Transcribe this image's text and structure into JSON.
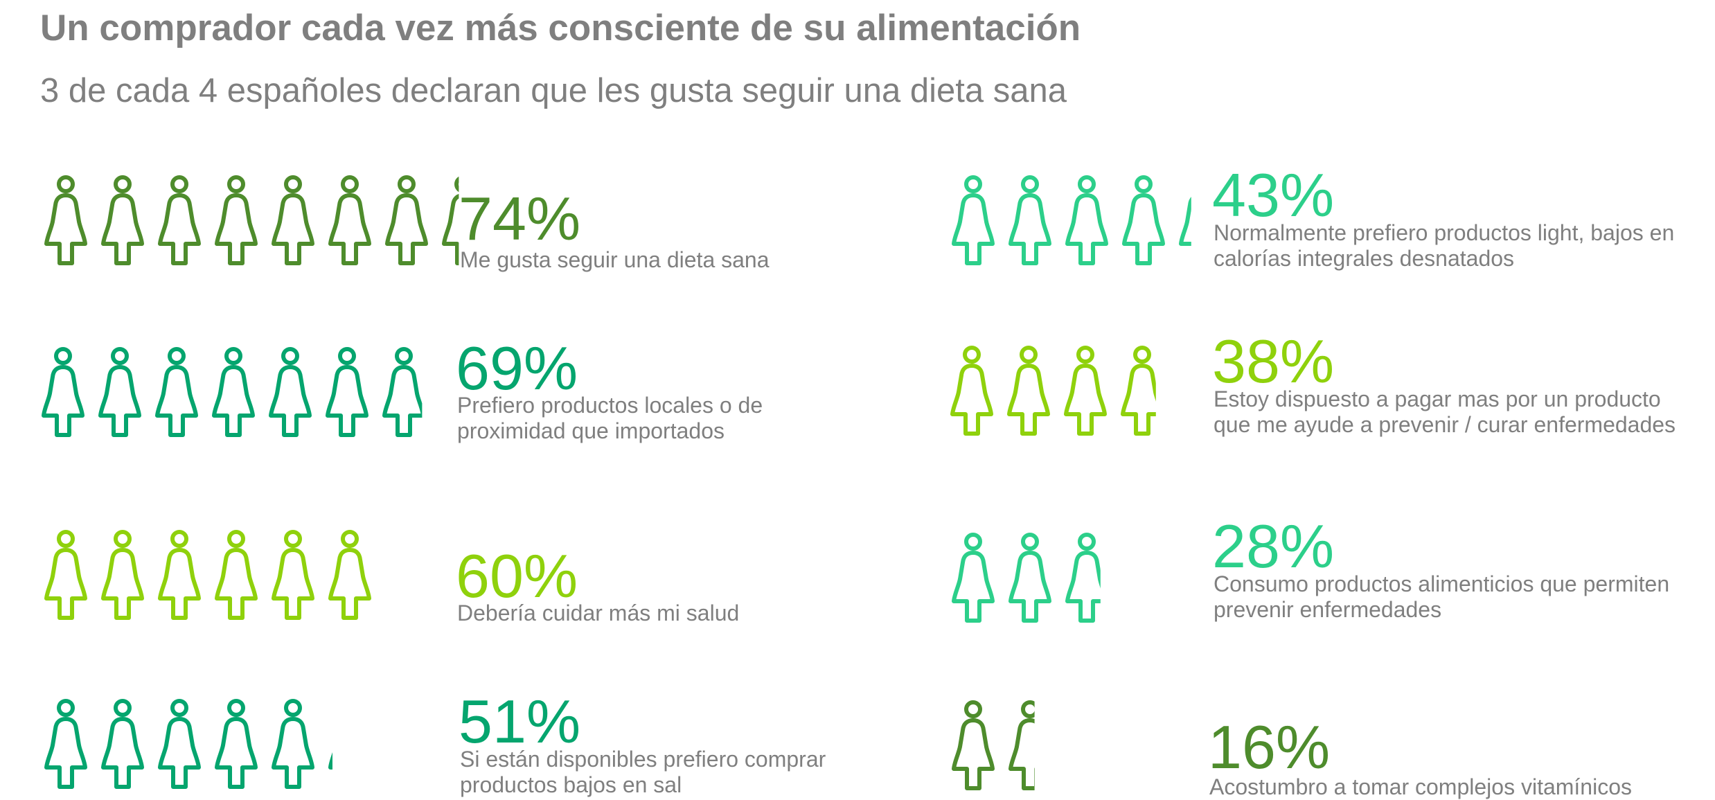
{
  "title": "Un comprador cada vez más consciente de su alimentación",
  "subtitle": "3 de cada 4 españoles declaran que les gusta seguir una dieta sana",
  "colors": {
    "dark_green": "#4e8c2c",
    "green": "#05a56e",
    "lime": "#8fd10c",
    "mint": "#2ccf8a",
    "text_gray": "#7f7f7f"
  },
  "icon": "person-figure-icon",
  "chart_data": {
    "type": "pictograph",
    "title": "Un comprador cada vez más consciente de su alimentación",
    "subtitle": "3 de cada 4 españoles declaran que les gusta seguir una dieta sana",
    "unit": "%",
    "items": [
      {
        "value": 74,
        "label": "74%",
        "text": [
          "Me gusta seguir una dieta sana"
        ],
        "color": "#4e8c2c"
      },
      {
        "value": 69,
        "label": "69%",
        "text": [
          "Prefiero productos locales o de",
          "proximidad que importados"
        ],
        "color": "#05a56e"
      },
      {
        "value": 60,
        "label": "60%",
        "text": [
          "Debería cuidar más mi salud"
        ],
        "color": "#8fd10c"
      },
      {
        "value": 51,
        "label": "51%",
        "text": [
          "Si están disponibles prefiero comprar",
          "productos bajos en sal"
        ],
        "color": "#05a56e"
      },
      {
        "value": 43,
        "label": "43%",
        "text": [
          "Normalmente prefiero productos light, bajos en",
          "calorías integrales desnatados"
        ],
        "color": "#2ccf8a"
      },
      {
        "value": 38,
        "label": "38%",
        "text": [
          "Estoy dispuesto a pagar mas por un producto",
          "que me ayude a prevenir / curar enfermedades"
        ],
        "color": "#8fd10c"
      },
      {
        "value": 28,
        "label": "28%",
        "text": [
          "Consumo productos alimenticios que permiten",
          "prevenir enfermedades"
        ],
        "color": "#2ccf8a"
      },
      {
        "value": 16,
        "label": "16%",
        "text": [
          "Acostumbro a tomar complejos vitamínicos"
        ],
        "color": "#4e8c2c"
      }
    ]
  }
}
